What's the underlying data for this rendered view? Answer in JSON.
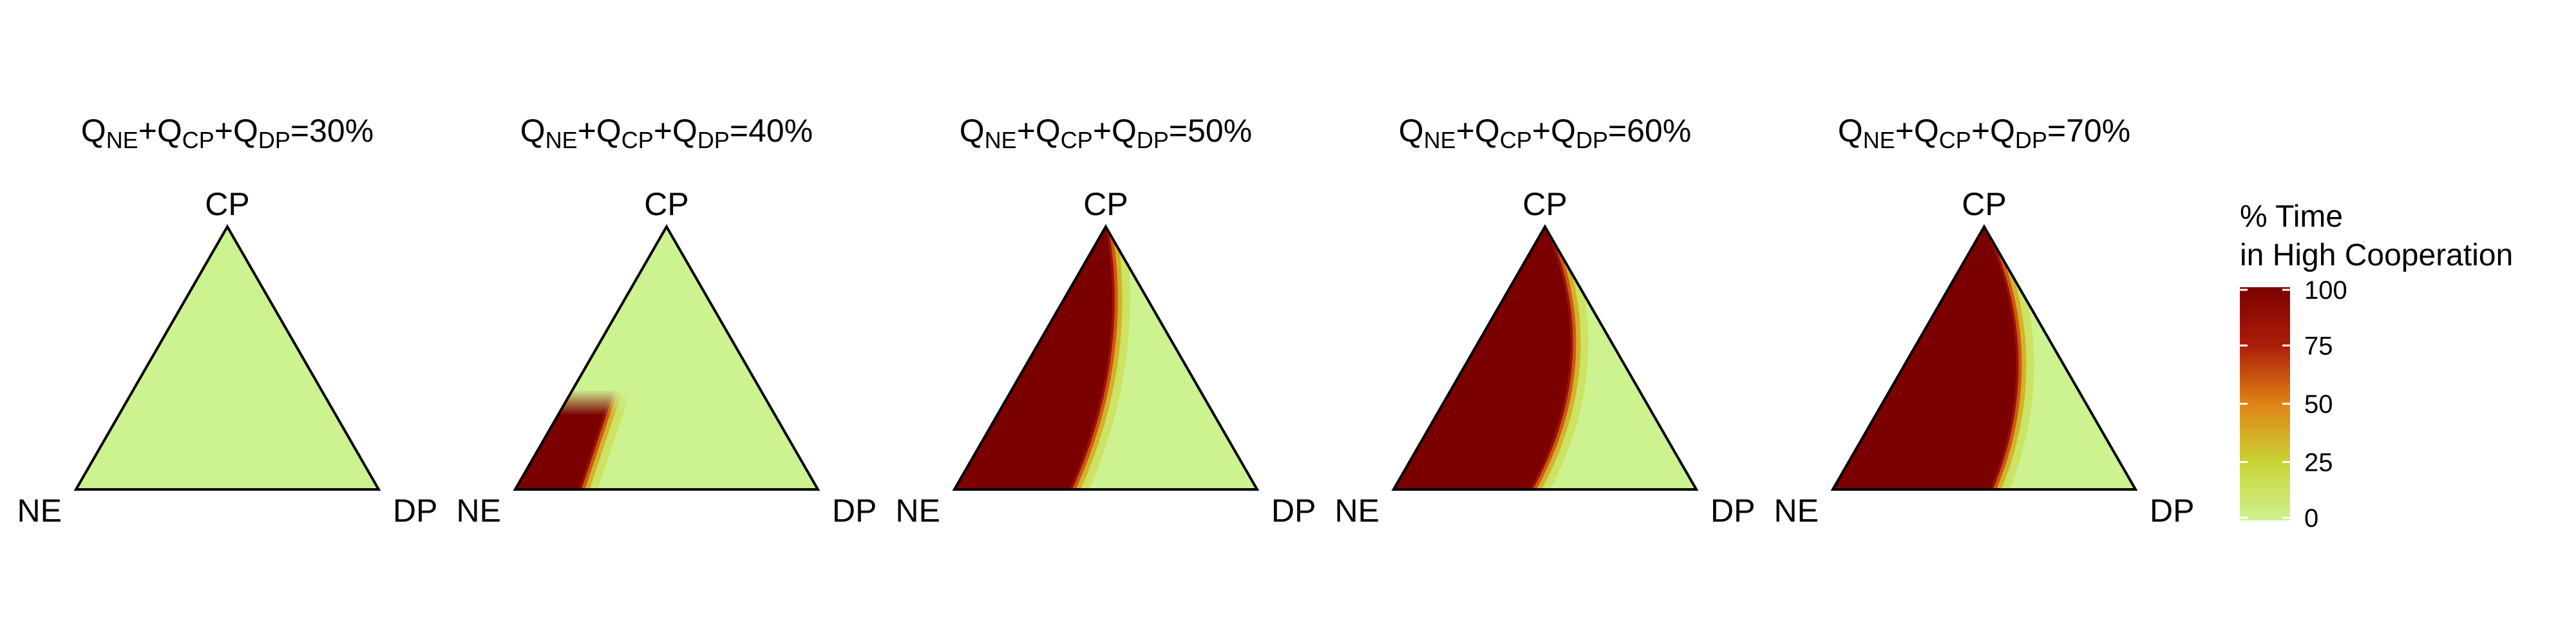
{
  "chart_data": {
    "type": "heatmap",
    "layout": "ternary small multiples",
    "panels": [
      {
        "title": [
          "Q",
          "NE",
          "+Q",
          "CP",
          "+Q",
          "DP",
          "=30%"
        ],
        "vertices": {
          "top": "CP",
          "left": "NE",
          "right": "DP"
        },
        "high_cooperation_region": {
          "transition_ne_share_at_base": 0.0,
          "transition_ne_share_at_top": 0.0,
          "top_cutoff_cp_share": 0.0,
          "max_value": 0,
          "fringe_value": 0
        }
      },
      {
        "title": [
          "Q",
          "NE",
          "+Q",
          "CP",
          "+Q",
          "DP",
          "=40%"
        ],
        "vertices": {
          "top": "CP",
          "left": "NE",
          "right": "DP"
        },
        "high_cooperation_region": {
          "transition_ne_share_at_base": 0.79,
          "transition_ne_share_at_top": 0.79,
          "top_cutoff_cp_share": 0.38,
          "max_value": 100,
          "fringe_value": 12
        }
      },
      {
        "title": [
          "Q",
          "NE",
          "+Q",
          "CP",
          "+Q",
          "DP",
          "=50%"
        ],
        "vertices": {
          "top": "CP",
          "left": "NE",
          "right": "DP"
        },
        "high_cooperation_region": {
          "transition_ne_share_at_base": 0.62,
          "transition_ne_share_at_top": 0.35,
          "top_cutoff_cp_share": 1.0,
          "max_value": 100,
          "fringe_value": 0
        }
      },
      {
        "title": [
          "Q",
          "NE",
          "+Q",
          "CP",
          "+Q",
          "DP",
          "=60%"
        ],
        "vertices": {
          "top": "CP",
          "left": "NE",
          "right": "DP"
        },
        "high_cooperation_region": {
          "transition_ne_share_at_base": 0.55,
          "transition_ne_share_at_top": 0.12,
          "top_cutoff_cp_share": 1.0,
          "max_value": 100,
          "fringe_value": 0
        }
      },
      {
        "title": [
          "Q",
          "NE",
          "+Q",
          "CP",
          "+Q",
          "DP",
          "=70%"
        ],
        "vertices": {
          "top": "CP",
          "left": "NE",
          "right": "DP"
        },
        "high_cooperation_region": {
          "transition_ne_share_at_base": 0.48,
          "transition_ne_share_at_top": 0.1,
          "top_cutoff_cp_share": 1.0,
          "max_value": 100,
          "fringe_value": 0
        }
      }
    ],
    "legend": {
      "title_line1": "% Time",
      "title_line2": "in High Cooperation",
      "ticks": [
        "0",
        "25",
        "50",
        "75",
        "100"
      ],
      "range": [
        0,
        100
      ],
      "placement": "right"
    },
    "colors": {
      "scale": [
        "#cdf290",
        "#cad335",
        "#e08316",
        "#ad1d0a",
        "#7b0000"
      ],
      "outline": "#000000"
    }
  }
}
